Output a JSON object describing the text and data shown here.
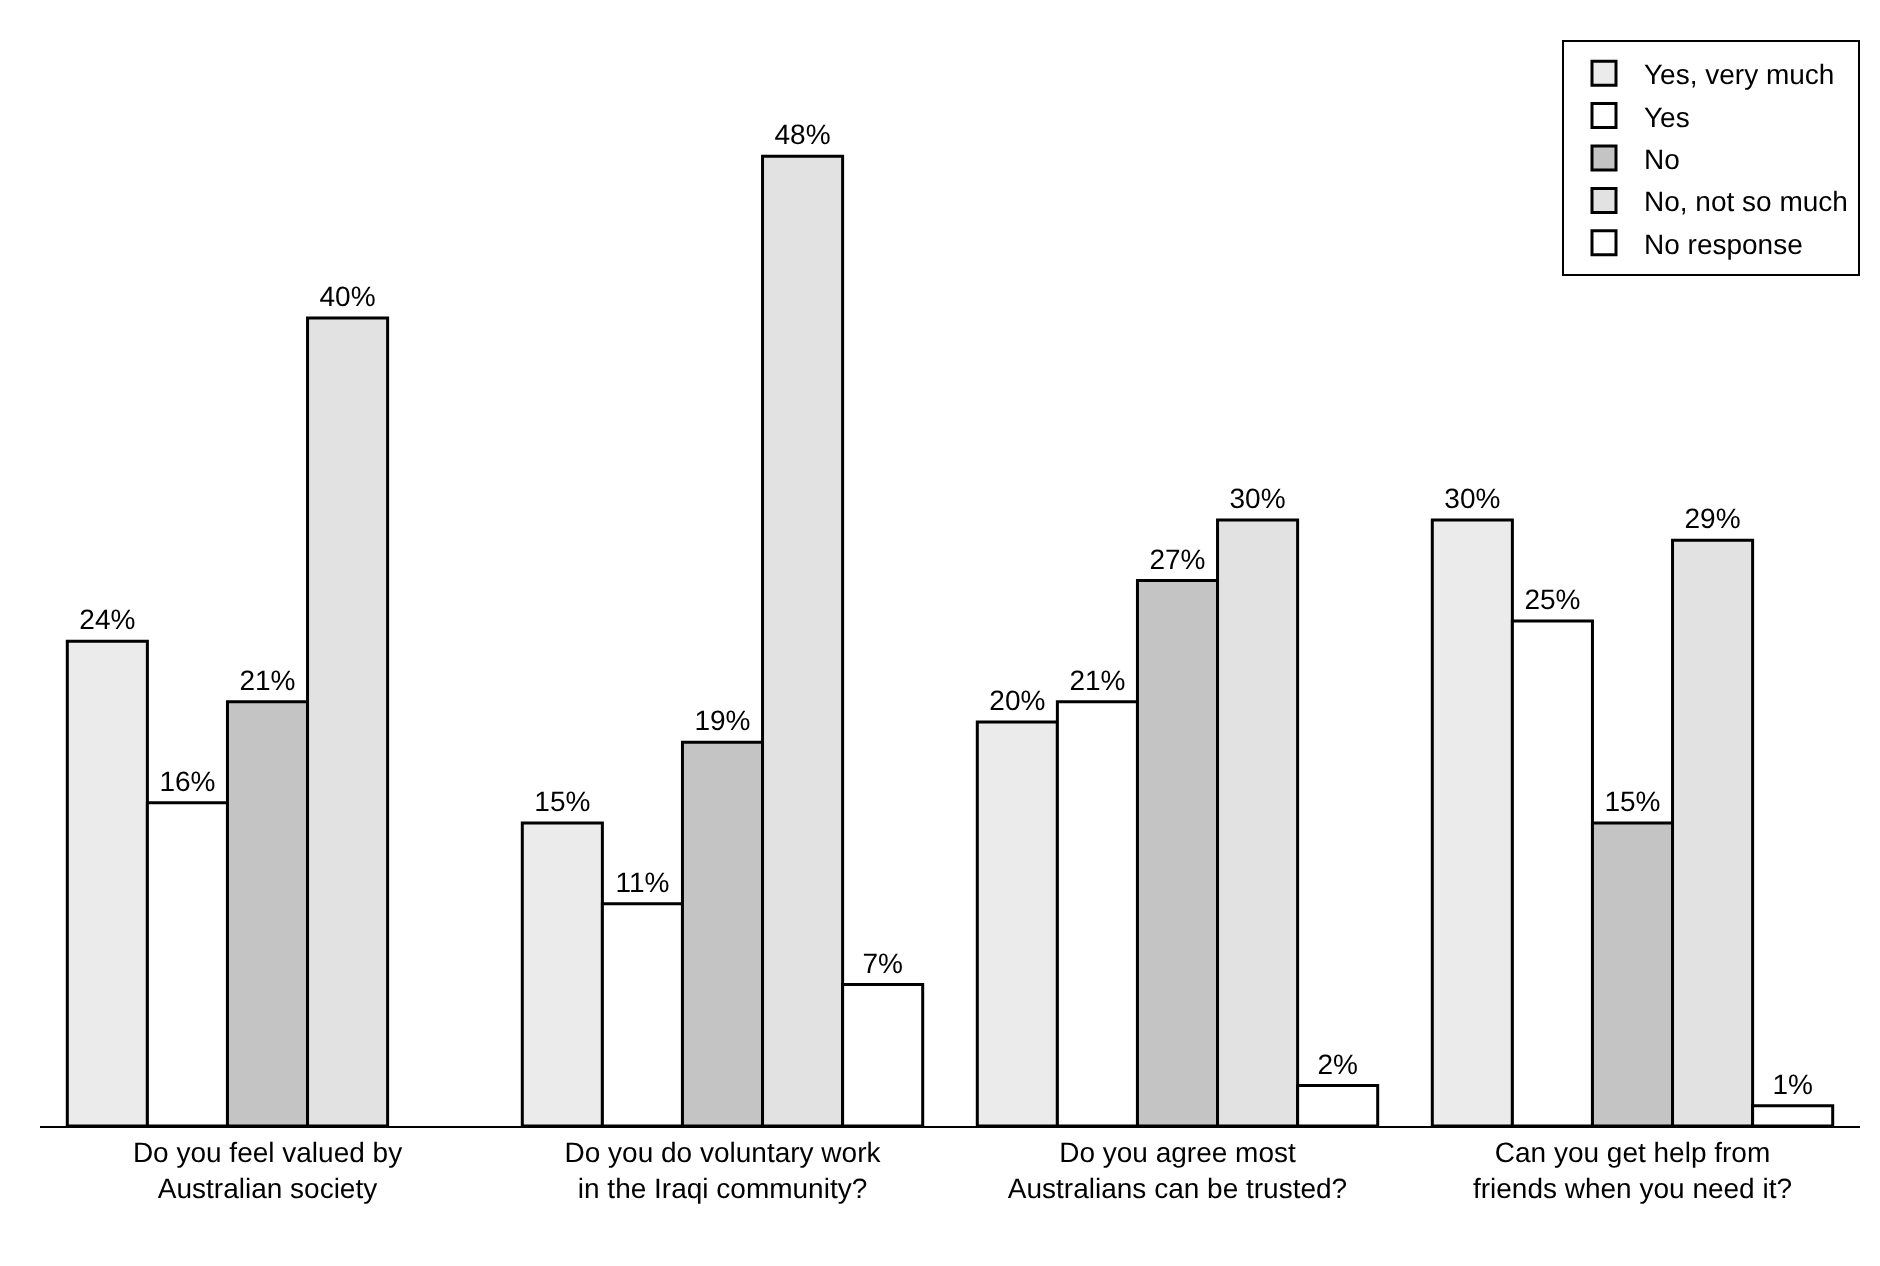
{
  "chart_data": {
    "type": "bar",
    "categories": [
      "Do you feel valued by\nAustralian society",
      "Do you do voluntary work\nin the Iraqi community?",
      "Do you agree most\nAustralians can be trusted?",
      "Can you get help from\nfriends when you need it?"
    ],
    "series": [
      {
        "name": "Yes, very much",
        "color": "#ebebeb",
        "values": [
          24,
          15,
          20,
          30
        ],
        "value_labels": [
          "24%",
          "15%",
          "20%",
          "30%"
        ]
      },
      {
        "name": "Yes",
        "color": "#ffffff",
        "values": [
          16,
          11,
          21,
          25
        ],
        "value_labels": [
          "16%",
          "11%",
          "21%",
          "25%"
        ]
      },
      {
        "name": "No",
        "color": "#c4c4c4",
        "values": [
          21,
          19,
          27,
          15
        ],
        "value_labels": [
          "21%",
          "19%",
          "27%",
          "15%"
        ]
      },
      {
        "name": "No, not so much",
        "color": "#e2e2e2",
        "values": [
          40,
          48,
          30,
          29
        ],
        "value_labels": [
          "40%",
          "48%",
          "30%",
          "29%"
        ]
      },
      {
        "name": "No response",
        "color": "#ffffff",
        "values": [
          null,
          7,
          2,
          1
        ],
        "value_labels": [
          null,
          "7%",
          "2%",
          "1%"
        ]
      }
    ],
    "legend": "top right"
  }
}
